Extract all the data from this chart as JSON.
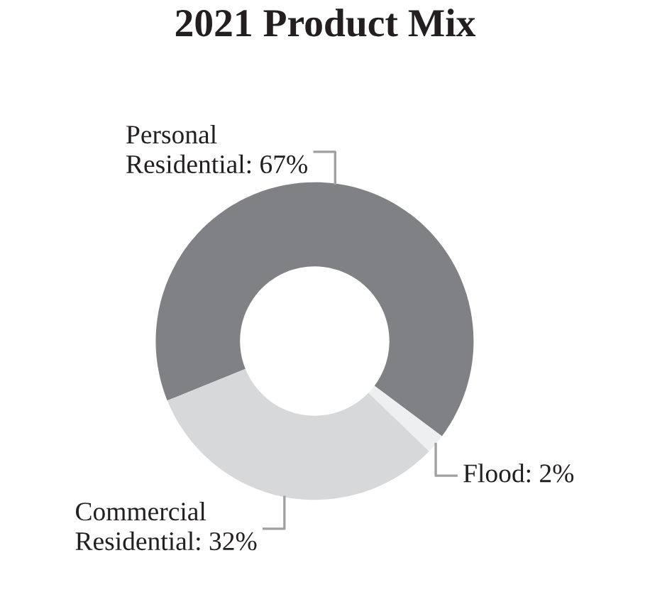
{
  "chart_data": {
    "type": "donut",
    "title": "2021 Product Mix",
    "categories": [
      "Personal Residential",
      "Flood",
      "Commercial Residential"
    ],
    "values": [
      67,
      2,
      32
    ],
    "value_labels": [
      "67%",
      "2%",
      "32%"
    ],
    "colors": [
      "#808184",
      "#eeeff0",
      "#d7d8da"
    ]
  }
}
